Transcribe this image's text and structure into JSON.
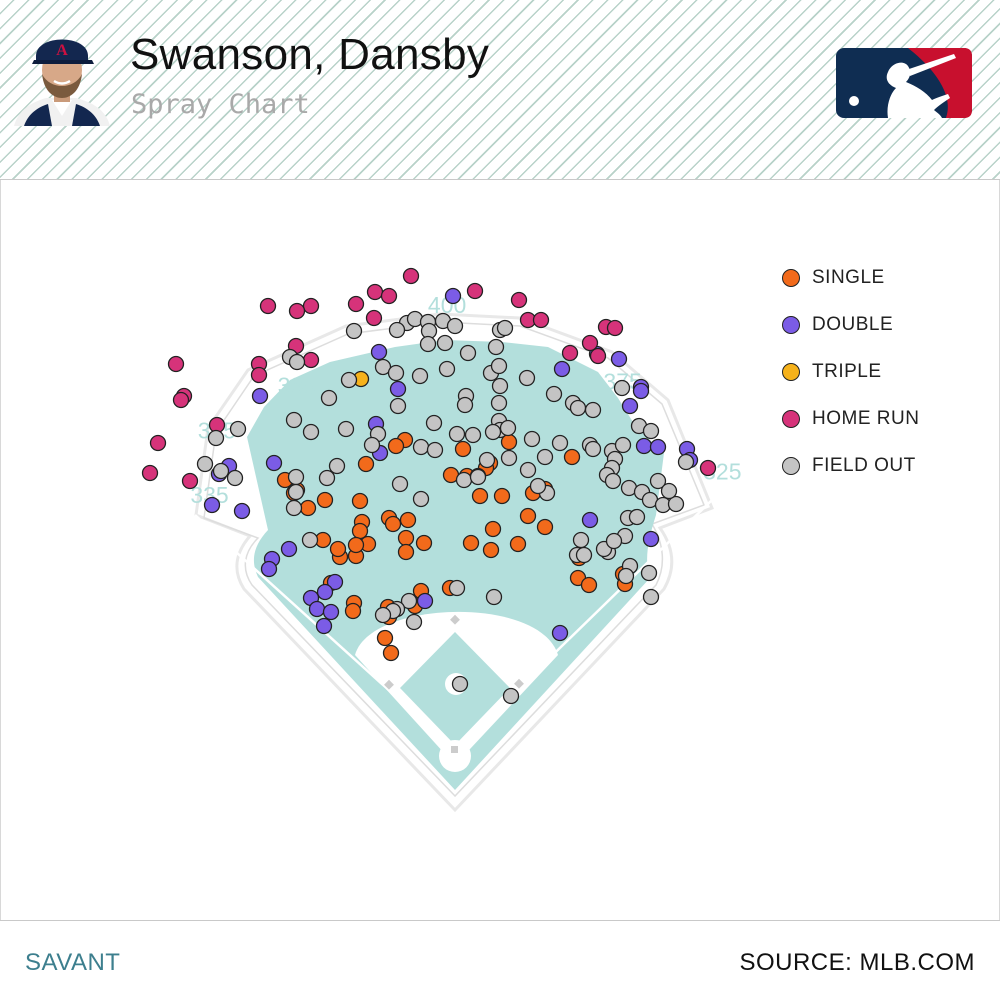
{
  "header": {
    "title": "Swanson, Dansby",
    "subtitle": "Spray Chart"
  },
  "footer": {
    "left_label": "SAVANT",
    "right_label": "SOURCE: MLB.COM"
  },
  "colors": {
    "single": "#f26a1b",
    "double": "#7b5ce6",
    "triple": "#f6b21b",
    "home_run": "#d6337a",
    "field_out": "#c4c4c4",
    "field": "#b3dfdc",
    "distance_label": "#b3dfdc",
    "logo_left": "#0f2d52",
    "logo_right": "#c8102e"
  },
  "icons": {
    "headshot": "player-headshot",
    "logo": "mlb-logo"
  },
  "chart_data": {
    "type": "scatter",
    "title": "Spray Chart",
    "xlabel": "",
    "ylabel": "",
    "legend_position": "right",
    "distance_labels": [
      {
        "text": "335",
        "angle": -43
      },
      {
        "text": "375",
        "angle": -36
      },
      {
        "text": "385",
        "angle": -23
      },
      {
        "text": "400",
        "angle": -1
      },
      {
        "text": "375",
        "angle": 24
      },
      {
        "text": "325",
        "angle": 43
      }
    ],
    "series": [
      {
        "name": "SINGLE",
        "color": "#f26a1b",
        "points": [
          [
            467,
            476
          ],
          [
            490,
            463
          ],
          [
            509,
            442
          ],
          [
            486,
            468
          ],
          [
            451,
            475
          ],
          [
            502,
            496
          ],
          [
            480,
            496
          ],
          [
            533,
            493
          ],
          [
            545,
            489
          ],
          [
            528,
            516
          ],
          [
            545,
            527
          ],
          [
            518,
            544
          ],
          [
            493,
            529
          ],
          [
            491,
            550
          ],
          [
            471,
            543
          ],
          [
            463,
            449
          ],
          [
            405,
            440
          ],
          [
            396,
            446
          ],
          [
            366,
            464
          ],
          [
            297,
            490
          ],
          [
            285,
            480
          ],
          [
            294,
            493
          ],
          [
            308,
            508
          ],
          [
            325,
            500
          ],
          [
            360,
            501
          ],
          [
            389,
            518
          ],
          [
            408,
            520
          ],
          [
            393,
            524
          ],
          [
            362,
            522
          ],
          [
            360,
            531
          ],
          [
            368,
            544
          ],
          [
            406,
            538
          ],
          [
            424,
            543
          ],
          [
            406,
            552
          ],
          [
            356,
            556
          ],
          [
            340,
            557
          ],
          [
            323,
            540
          ],
          [
            338,
            549
          ],
          [
            356,
            545
          ],
          [
            331,
            583
          ],
          [
            354,
            603
          ],
          [
            353,
            611
          ],
          [
            388,
            607
          ],
          [
            415,
            606
          ],
          [
            421,
            591
          ],
          [
            450,
            588
          ],
          [
            389,
            617
          ],
          [
            385,
            638
          ],
          [
            391,
            653
          ],
          [
            578,
            578
          ],
          [
            589,
            585
          ],
          [
            623,
            574
          ],
          [
            625,
            584
          ],
          [
            579,
            558
          ],
          [
            572,
            457
          ]
        ]
      },
      {
        "name": "DOUBLE",
        "color": "#7b5ce6",
        "points": [
          [
            453,
            296
          ],
          [
            379,
            352
          ],
          [
            562,
            369
          ],
          [
            597,
            354
          ],
          [
            619,
            359
          ],
          [
            641,
            387
          ],
          [
            641,
            391
          ],
          [
            630,
            406
          ],
          [
            644,
            446
          ],
          [
            658,
            447
          ],
          [
            687,
            449
          ],
          [
            690,
            460
          ],
          [
            590,
            520
          ],
          [
            651,
            539
          ],
          [
            560,
            633
          ],
          [
            398,
            389
          ],
          [
            376,
            424
          ],
          [
            380,
            453
          ],
          [
            274,
            463
          ],
          [
            229,
            466
          ],
          [
            219,
            474
          ],
          [
            212,
            505
          ],
          [
            242,
            511
          ],
          [
            289,
            549
          ],
          [
            272,
            559
          ],
          [
            269,
            569
          ],
          [
            335,
            582
          ],
          [
            325,
            592
          ],
          [
            311,
            598
          ],
          [
            317,
            609
          ],
          [
            331,
            612
          ],
          [
            324,
            626
          ],
          [
            425,
            601
          ],
          [
            260,
            396
          ]
        ]
      },
      {
        "name": "TRIPLE",
        "color": "#f6b21b",
        "points": [
          [
            361,
            379
          ]
        ]
      },
      {
        "name": "HOME RUN",
        "color": "#d6337a",
        "points": [
          [
            411,
            276
          ],
          [
            375,
            292
          ],
          [
            389,
            296
          ],
          [
            356,
            304
          ],
          [
            475,
            291
          ],
          [
            519,
            300
          ],
          [
            311,
            306
          ],
          [
            297,
            311
          ],
          [
            268,
            306
          ],
          [
            374,
            318
          ],
          [
            528,
            320
          ],
          [
            541,
            320
          ],
          [
            606,
            327
          ],
          [
            615,
            328
          ],
          [
            590,
            343
          ],
          [
            598,
            356
          ],
          [
            570,
            353
          ],
          [
            296,
            346
          ],
          [
            311,
            360
          ],
          [
            259,
            364
          ],
          [
            259,
            375
          ],
          [
            176,
            364
          ],
          [
            184,
            396
          ],
          [
            181,
            400
          ],
          [
            217,
            425
          ],
          [
            158,
            443
          ],
          [
            150,
            473
          ],
          [
            190,
            481
          ],
          [
            708,
            468
          ]
        ]
      },
      {
        "name": "FIELD OUT",
        "color": "#c4c4c4",
        "points": [
          [
            407,
            323
          ],
          [
            415,
            319
          ],
          [
            397,
            330
          ],
          [
            428,
            322
          ],
          [
            443,
            321
          ],
          [
            429,
            331
          ],
          [
            455,
            326
          ],
          [
            500,
            330
          ],
          [
            505,
            328
          ],
          [
            354,
            331
          ],
          [
            428,
            344
          ],
          [
            445,
            343
          ],
          [
            468,
            353
          ],
          [
            496,
            347
          ],
          [
            290,
            357
          ],
          [
            297,
            362
          ],
          [
            383,
            367
          ],
          [
            396,
            373
          ],
          [
            420,
            376
          ],
          [
            447,
            369
          ],
          [
            491,
            373
          ],
          [
            499,
            366
          ],
          [
            500,
            386
          ],
          [
            527,
            378
          ],
          [
            499,
            403
          ],
          [
            466,
            396
          ],
          [
            465,
            405
          ],
          [
            554,
            394
          ],
          [
            573,
            403
          ],
          [
            578,
            408
          ],
          [
            593,
            410
          ],
          [
            622,
            388
          ],
          [
            349,
            380
          ],
          [
            329,
            398
          ],
          [
            398,
            406
          ],
          [
            294,
            420
          ],
          [
            311,
            432
          ],
          [
            346,
            429
          ],
          [
            378,
            434
          ],
          [
            372,
            445
          ],
          [
            421,
            447
          ],
          [
            435,
            450
          ],
          [
            434,
            423
          ],
          [
            457,
            434
          ],
          [
            473,
            435
          ],
          [
            499,
            421
          ],
          [
            500,
            430
          ],
          [
            493,
            432
          ],
          [
            508,
            428
          ],
          [
            532,
            439
          ],
          [
            545,
            457
          ],
          [
            560,
            443
          ],
          [
            590,
            445
          ],
          [
            593,
            449
          ],
          [
            612,
            451
          ],
          [
            623,
            445
          ],
          [
            639,
            426
          ],
          [
            651,
            431
          ],
          [
            615,
            459
          ],
          [
            612,
            468
          ],
          [
            607,
            475
          ],
          [
            613,
            481
          ],
          [
            658,
            481
          ],
          [
            629,
            488
          ],
          [
            642,
            492
          ],
          [
            650,
            500
          ],
          [
            663,
            505
          ],
          [
            676,
            504
          ],
          [
            669,
            491
          ],
          [
            686,
            462
          ],
          [
            628,
            518
          ],
          [
            637,
            517
          ],
          [
            608,
            552
          ],
          [
            604,
            549
          ],
          [
            625,
            536
          ],
          [
            614,
            541
          ],
          [
            630,
            566
          ],
          [
            649,
            573
          ],
          [
            626,
            576
          ],
          [
            651,
            597
          ],
          [
            581,
            540
          ],
          [
            577,
            555
          ],
          [
            584,
            555
          ],
          [
            509,
            458
          ],
          [
            487,
            460
          ],
          [
            528,
            470
          ],
          [
            547,
            493
          ],
          [
            538,
            486
          ],
          [
            464,
            480
          ],
          [
            478,
            476
          ],
          [
            478,
            477
          ],
          [
            400,
            484
          ],
          [
            421,
            499
          ],
          [
            337,
            466
          ],
          [
            327,
            478
          ],
          [
            296,
            477
          ],
          [
            296,
            492
          ],
          [
            294,
            508
          ],
          [
            310,
            540
          ],
          [
            238,
            429
          ],
          [
            216,
            438
          ],
          [
            205,
            464
          ],
          [
            221,
            471
          ],
          [
            235,
            478
          ],
          [
            494,
            597
          ],
          [
            457,
            588
          ],
          [
            409,
            601
          ],
          [
            397,
            609
          ],
          [
            393,
            611
          ],
          [
            383,
            615
          ],
          [
            414,
            622
          ],
          [
            460,
            684
          ],
          [
            511,
            696
          ]
        ]
      }
    ]
  }
}
